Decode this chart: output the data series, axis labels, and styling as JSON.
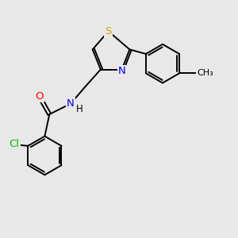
{
  "bg_color": "#e8e8e8",
  "bond_color": "#000000",
  "atom_colors": {
    "S": "#ccaa00",
    "N": "#0000ff",
    "O": "#ff0000",
    "Cl": "#00bb00",
    "C": "#000000"
  },
  "font_size": 8.5,
  "bond_width": 1.4,
  "figsize": [
    3.0,
    3.0
  ],
  "dpi": 100,
  "xlim": [
    0,
    10
  ],
  "ylim": [
    0,
    10
  ]
}
